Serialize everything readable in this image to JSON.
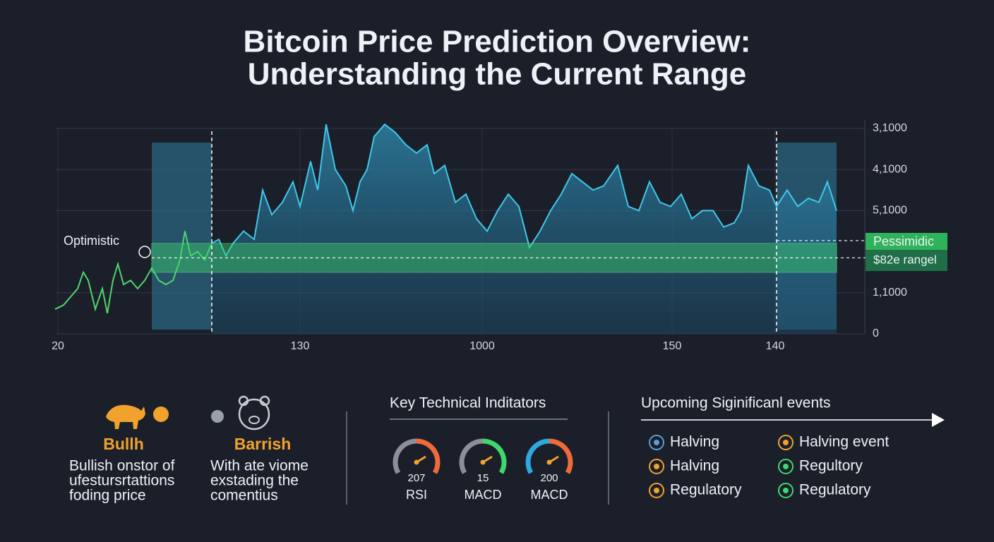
{
  "title": [
    "Bitcoin Price Prediction Overview:",
    "Understanding the Current Range"
  ],
  "chart_data": {
    "type": "line",
    "x": [
      0,
      12,
      22,
      32,
      40,
      47,
      57,
      67,
      74,
      82,
      89,
      97,
      107,
      117,
      127,
      137,
      147,
      157,
      167,
      177,
      184,
      192,
      202,
      212,
      222,
      232,
      242,
      252,
      267,
      282,
      294,
      307,
      322,
      337,
      347,
      362,
      372,
      384,
      397,
      412,
      422,
      432,
      442,
      452,
      467,
      482,
      497,
      512,
      527,
      537,
      552,
      567,
      582,
      597,
      612,
      627,
      642,
      657,
      672,
      687,
      702,
      717,
      732,
      747,
      762,
      777,
      797,
      812,
      827,
      842,
      857,
      872,
      887,
      902,
      917,
      932,
      947,
      962,
      972,
      982,
      997,
      1012,
      1022,
      1037,
      1052,
      1067,
      1082,
      1094,
      1107
    ],
    "series": [
      {
        "color": "#4fd66a",
        "values": [
          0.6,
          0.7,
          0.9,
          1.1,
          1.5,
          1.3,
          0.6,
          1.1,
          0.5,
          1.3,
          1.7,
          1.2,
          1.3,
          1.1,
          1.3,
          1.6,
          1.3,
          1.2,
          1.3,
          1.8,
          2.5,
          1.9,
          2.0,
          1.8,
          2.2,
          null,
          null,
          null,
          null,
          null,
          null,
          null,
          null,
          null,
          null,
          null,
          null,
          null,
          null,
          null,
          null,
          null,
          null,
          null,
          null,
          null,
          null,
          null,
          null,
          null,
          null,
          null,
          null,
          null,
          null,
          null,
          null,
          null,
          null,
          null,
          null,
          null,
          null,
          null,
          null,
          null,
          null,
          null,
          null,
          null,
          null,
          null,
          null,
          null,
          null,
          null,
          null,
          null,
          null,
          null,
          null,
          null,
          null,
          null,
          null,
          null,
          null,
          null,
          null
        ]
      },
      {
        "color": "#3fc8e8",
        "values": [
          null,
          null,
          null,
          null,
          null,
          null,
          null,
          null,
          null,
          null,
          null,
          null,
          null,
          null,
          null,
          null,
          null,
          null,
          null,
          null,
          null,
          null,
          null,
          null,
          2.2,
          2.3,
          1.9,
          2.2,
          2.5,
          2.3,
          3.5,
          2.9,
          3.2,
          3.7,
          3.1,
          4.2,
          3.5,
          5.1,
          4.0,
          3.6,
          3.0,
          3.7,
          4.0,
          4.8,
          5.1,
          4.9,
          4.6,
          4.4,
          4.6,
          3.9,
          4.1,
          3.2,
          3.4,
          2.8,
          2.5,
          3.0,
          3.4,
          3.1,
          2.1,
          2.5,
          3.0,
          3.4,
          3.9,
          3.7,
          3.5,
          3.6,
          4.1,
          3.1,
          3.0,
          3.7,
          3.2,
          3.1,
          3.4,
          2.8,
          3.0,
          3.0,
          2.6,
          2.7,
          3.0,
          4.1,
          3.6,
          3.5,
          3.1,
          3.5,
          3.1,
          3.3,
          3.2,
          3.7,
          3.0
        ]
      }
    ],
    "xlim": [
      0,
      1147
    ],
    "ylim": [
      0,
      5
    ],
    "xticks": [
      {
        "value": 4,
        "label": "20"
      },
      {
        "value": 347,
        "label": "130"
      },
      {
        "value": 605,
        "label": "1000"
      },
      {
        "value": 874,
        "label": "150"
      },
      {
        "value": 1020,
        "label": "140"
      }
    ],
    "yticks": [
      {
        "value": 5,
        "label": "3,1000"
      },
      {
        "value": 4,
        "label": "4,1000"
      },
      {
        "value": 3,
        "label": "5,1000"
      },
      {
        "value": 1,
        "label": "1,1000"
      },
      0
    ],
    "grid": true,
    "zones": [
      [
        137,
        222
      ],
      [
        1022,
        1107
      ]
    ],
    "range_band": [
      1.5,
      2.2
    ],
    "annotations": [
      "Optimistic",
      "Pessimidic",
      "$82e rangel"
    ]
  },
  "bull": {
    "title": "Bullh",
    "text": [
      "Bullish onstor of",
      "ufestursrtattions",
      "foding price"
    ]
  },
  "bear": {
    "title": "Barrish",
    "text": [
      "With ate viome",
      "exstading the",
      "comentius"
    ]
  },
  "indicators": {
    "title": "Key Technical Inditators",
    "gauges": [
      {
        "value": 207,
        "label": "RSI"
      },
      {
        "value": 15,
        "label": "MACD"
      },
      {
        "value": 200,
        "label": "MACD"
      }
    ]
  },
  "events": {
    "title": "Upcoming Siginificanl events",
    "items": [
      "Halving",
      "Halving event",
      "Halving",
      "Regultory",
      "Regulatory",
      "Regulatory"
    ]
  }
}
